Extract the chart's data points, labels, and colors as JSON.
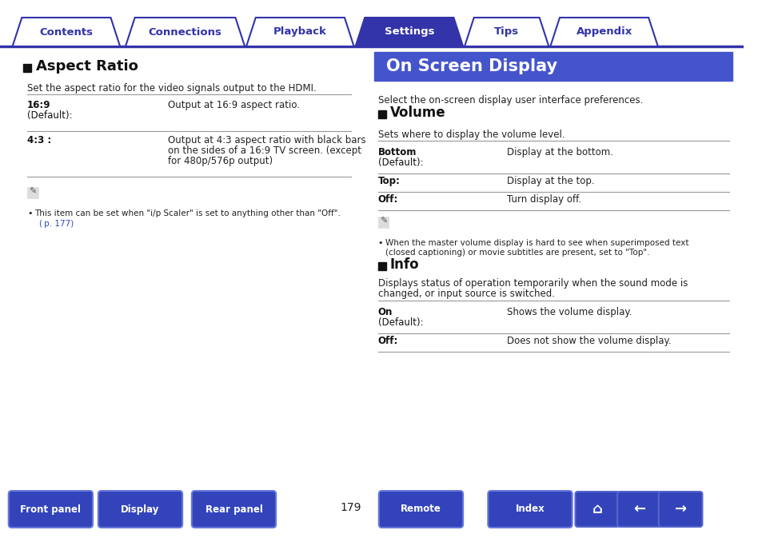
{
  "bg_color": "#ffffff",
  "tab_bar_color": "#3333aa",
  "tab_items": [
    "Contents",
    "Connections",
    "Playback",
    "Settings",
    "Tips",
    "Appendix"
  ],
  "tab_active": "Settings",
  "tab_active_color": "#3333aa",
  "tab_inactive_color": "#ffffff",
  "tab_text_active": "#ffffff",
  "tab_text_inactive": "#3333aa",
  "header_bg": "#4455cc",
  "header_text": "On Screen Display",
  "header_text_color": "#ffffff",
  "left_section_title": "Aspect Ratio",
  "left_intro": "Set the aspect ratio for the video signals output to the HDMI.",
  "left_rows": [
    {
      "label": "16:9\n(Default):",
      "desc": "Output at 16:9 aspect ratio.",
      "bold_label": true
    },
    {
      "label": "4:3 :",
      "desc": "Output at 4:3 aspect ratio with black bars\non the sides of a 16:9 TV screen. (except\nfor 480p/576p output)",
      "bold_label": true
    }
  ],
  "left_note": "This item can be set when \"i/p Scaler\" is set to anything other than \"Off\".\n( p. 177)",
  "right_intro": "Select the on-screen display user interface preferences.",
  "volume_title": "Volume",
  "volume_intro": "Sets where to display the volume level.",
  "volume_rows": [
    {
      "label": "Bottom\n(Default):",
      "desc": "Display at the bottom.",
      "bold_label": true
    },
    {
      "label": "Top:",
      "desc": "Display at the top.",
      "bold_label": true
    },
    {
      "label": "Off:",
      "desc": "Turn display off.",
      "bold_label": true
    }
  ],
  "volume_note": "When the master volume display is hard to see when superimposed text\n(closed captioning) or movie subtitles are present, set to \"Top\".",
  "info_title": "Info",
  "info_intro": "Displays status of operation temporarily when the sound mode is\nchanged, or input source is switched.",
  "info_rows": [
    {
      "label": "On\n(Default):",
      "desc": "Shows the volume display.",
      "bold_label": true
    },
    {
      "label": "Off:",
      "desc": "Does not show the volume display.",
      "bold_label": true
    }
  ],
  "bottom_buttons": [
    "Front panel",
    "Display",
    "Rear panel",
    "Remote",
    "Index"
  ],
  "bottom_button_color": "#3344bb",
  "bottom_button_text_color": "#ffffff",
  "page_number": "179",
  "divider_color": "#3333aa",
  "line_color": "#999999"
}
